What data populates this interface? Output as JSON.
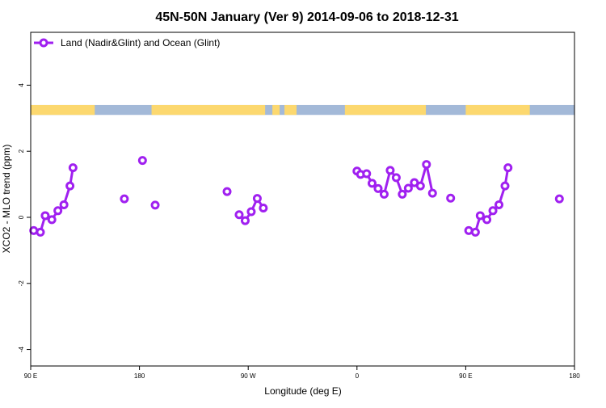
{
  "chart_data": {
    "type": "line",
    "title": "45N-50N January (Ver 9)   2014-09-06 to 2018-12-31",
    "xlabel": "Longitude (deg E)",
    "ylabel": "XCO2 - MLO trend (ppm)",
    "xlim": [
      90,
      540
    ],
    "ylim": [
      -4.5,
      5.6
    ],
    "x_ticks": [
      {
        "value": 90,
        "label": "90 E"
      },
      {
        "value": 180,
        "label": "180"
      },
      {
        "value": 270,
        "label": "90 W"
      },
      {
        "value": 360,
        "label": "0"
      },
      {
        "value": 450,
        "label": "90 E"
      },
      {
        "value": 540,
        "label": "180"
      }
    ],
    "y_ticks": [
      {
        "value": -4,
        "label": "-4"
      },
      {
        "value": -2,
        "label": "-2"
      },
      {
        "value": 0,
        "label": "0"
      },
      {
        "value": 2,
        "label": "2"
      },
      {
        "value": 4,
        "label": "4"
      }
    ],
    "legend": {
      "position": "top-left"
    },
    "grid": false,
    "series": [
      {
        "name": "Land (Nadir&Glint) and Ocean (Glint)",
        "color": "#a020f0",
        "segments": [
          [
            [
              92.5,
              -0.4
            ],
            [
              98,
              -0.45
            ],
            [
              102,
              0.05
            ],
            [
              107.5,
              -0.07
            ],
            [
              112.5,
              0.2
            ],
            [
              117.5,
              0.38
            ],
            [
              122.5,
              0.95
            ],
            [
              125,
              1.5
            ]
          ],
          [
            [
              167.5,
              0.56
            ]
          ],
          [
            [
              182.5,
              1.72
            ]
          ],
          [
            [
              193,
              0.37
            ]
          ],
          [
            [
              252.5,
              0.78
            ]
          ],
          [
            [
              262.5,
              0.08
            ],
            [
              267.5,
              -0.1
            ],
            [
              272.5,
              0.17
            ],
            [
              277.5,
              0.57
            ],
            [
              282.5,
              0.28
            ]
          ],
          [
            [
              360,
              1.4
            ],
            [
              363,
              1.3
            ],
            [
              368,
              1.32
            ],
            [
              372.5,
              1.03
            ],
            [
              377.5,
              0.87
            ],
            [
              382.5,
              0.7
            ],
            [
              387.5,
              1.42
            ],
            [
              392.5,
              1.2
            ],
            [
              397.5,
              0.7
            ],
            [
              402.5,
              0.88
            ],
            [
              407.5,
              1.05
            ],
            [
              412.5,
              0.95
            ],
            [
              417.5,
              1.6
            ],
            [
              422.5,
              0.73
            ]
          ],
          [
            [
              437.5,
              0.58
            ]
          ],
          [
            [
              452.5,
              -0.4
            ],
            [
              458,
              -0.45
            ],
            [
              462,
              0.05
            ],
            [
              467.5,
              -0.07
            ],
            [
              472.5,
              0.2
            ],
            [
              477.5,
              0.38
            ],
            [
              482.5,
              0.95
            ],
            [
              485,
              1.5
            ]
          ],
          [
            [
              527.5,
              0.56
            ]
          ]
        ]
      }
    ],
    "land_ocean_band": {
      "y_range": [
        3.1,
        3.4
      ],
      "land_color": "#fcd86f",
      "ocean_color": "#a3b9d8",
      "land_ranges": [
        [
          90,
          143
        ],
        [
          190,
          284
        ],
        [
          290,
          296
        ],
        [
          300,
          310
        ],
        [
          350,
          417
        ],
        [
          450,
          503
        ]
      ]
    }
  }
}
